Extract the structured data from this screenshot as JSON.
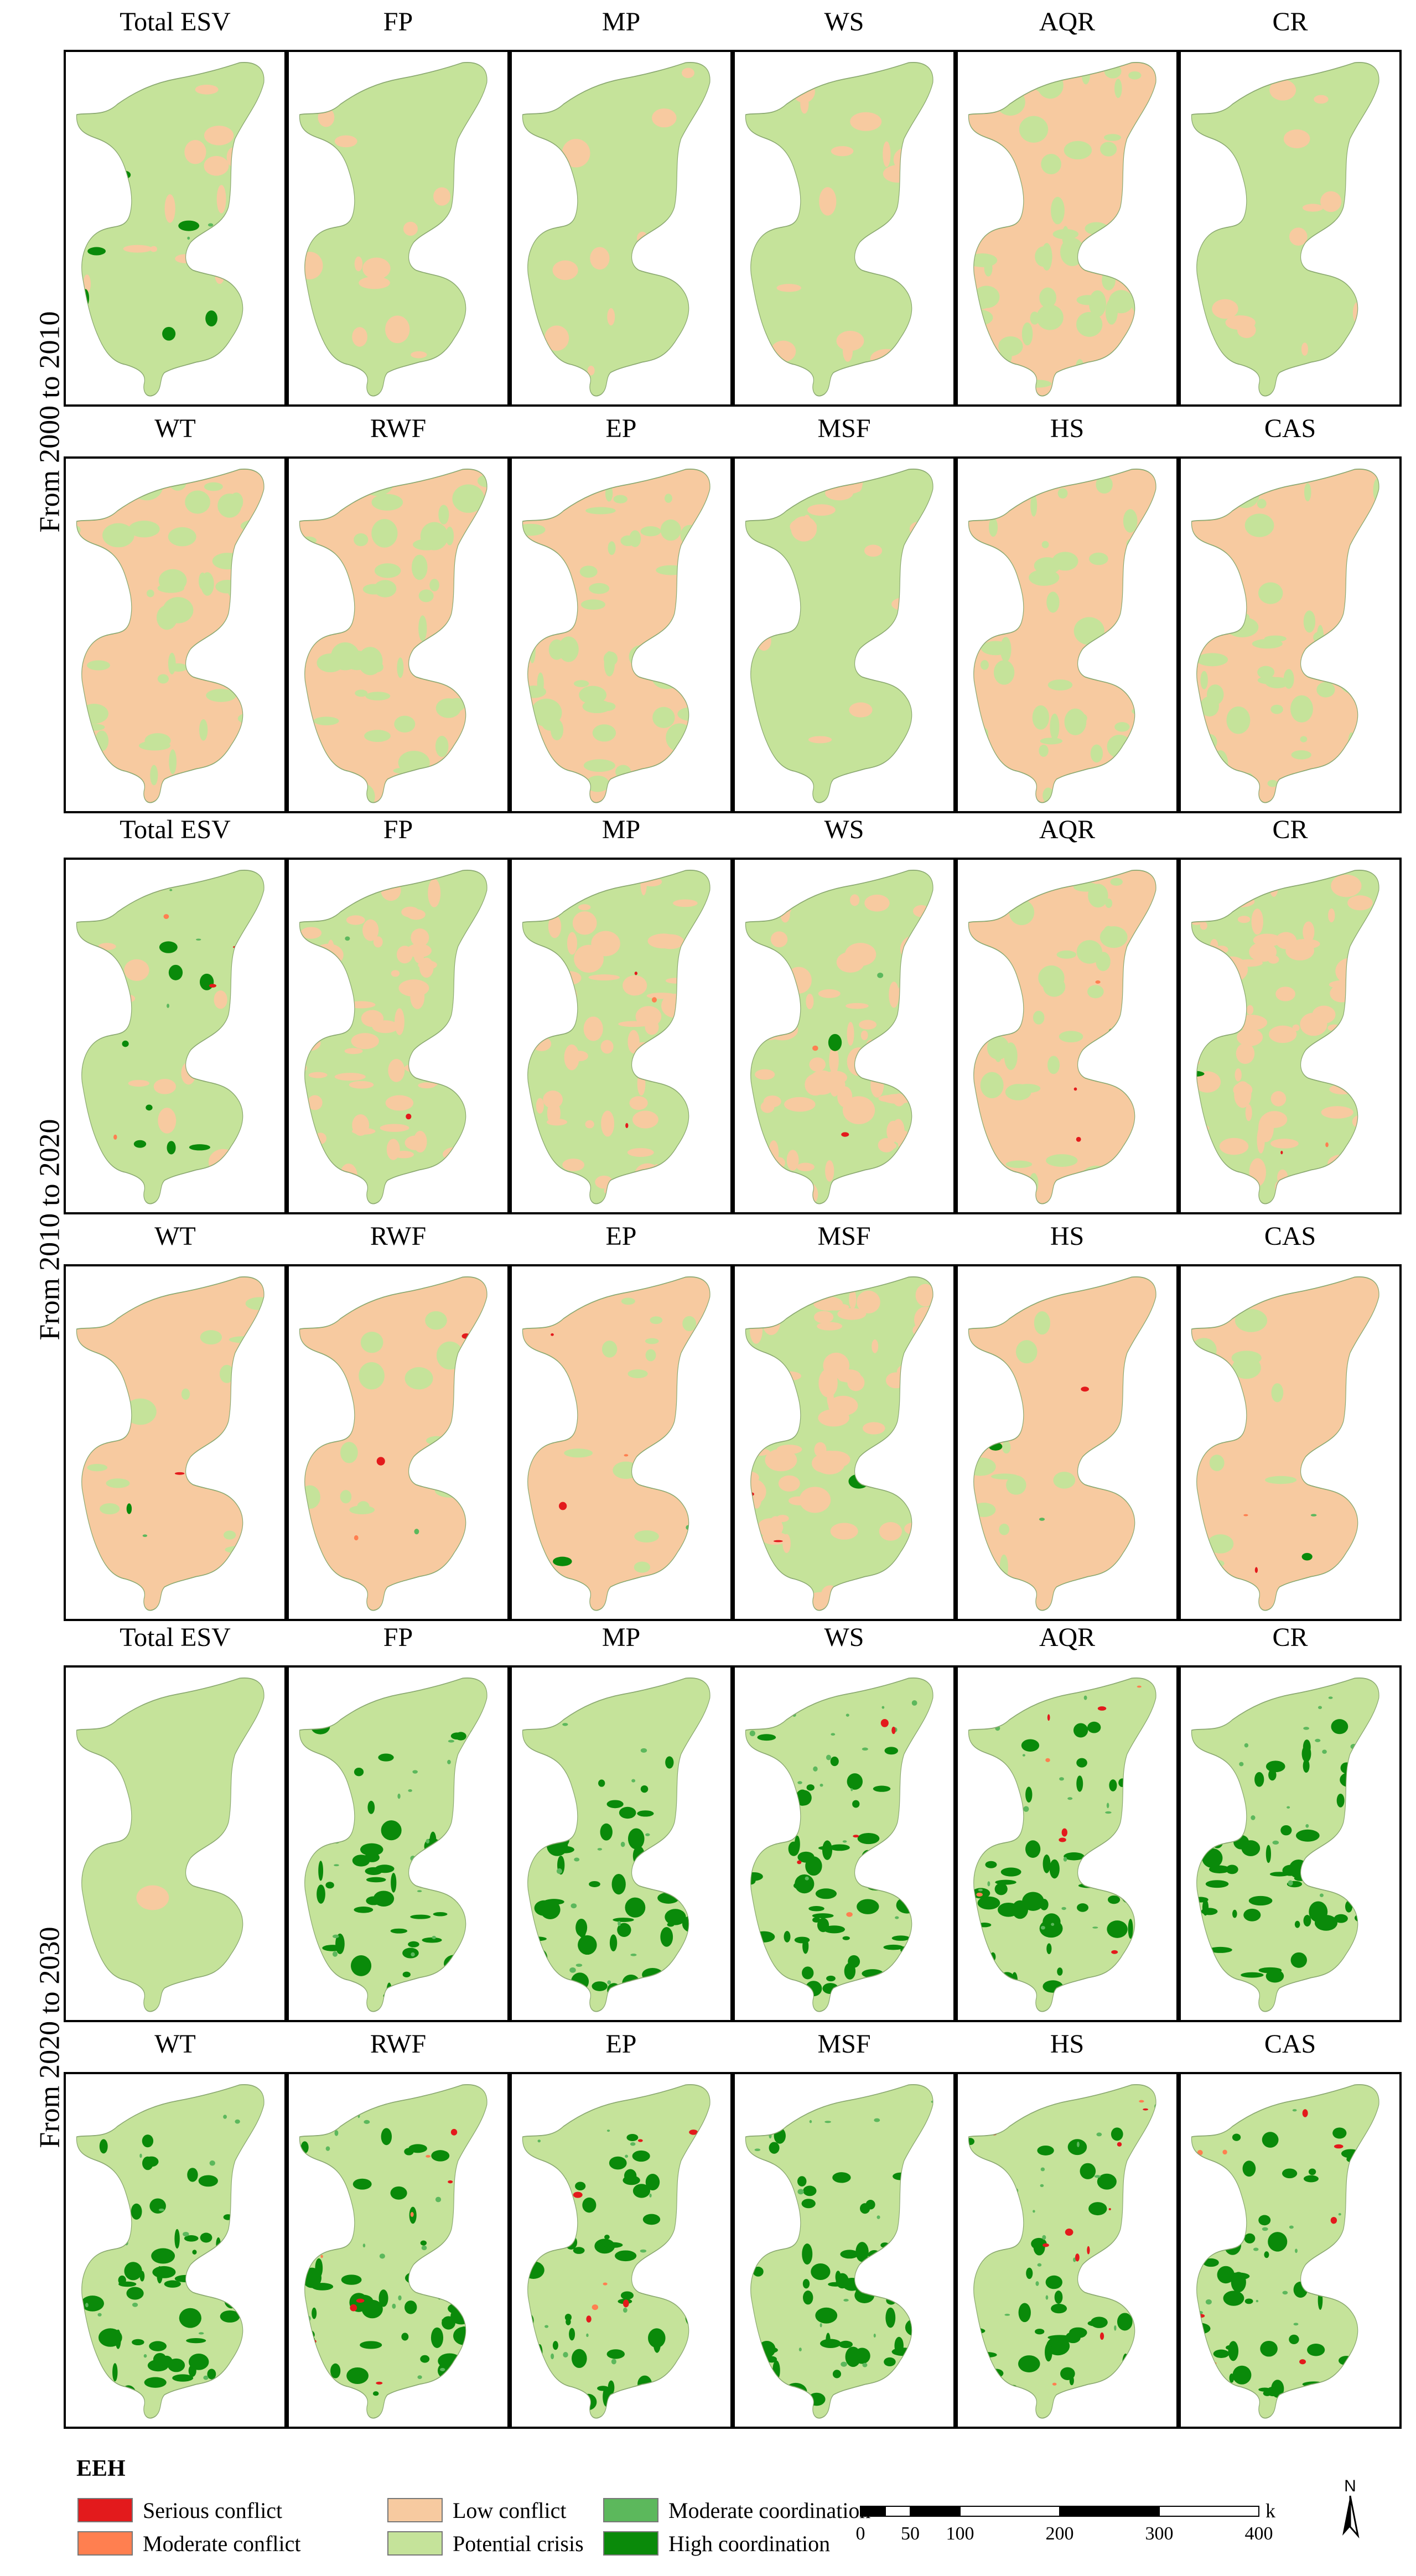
{
  "periods": [
    {
      "label": "From 2000 to 2010",
      "rows": [
        [
          {
            "title": "Total ESV",
            "base": "#c5e39a",
            "patch": "#f7caa0",
            "patchAmount": 0.12,
            "green": 0.05,
            "red": 0
          },
          {
            "title": "FP",
            "base": "#c5e39a",
            "patch": "#f7caa0",
            "patchAmount": 0.12,
            "green": 0,
            "red": 0
          },
          {
            "title": "MP",
            "base": "#c5e39a",
            "patch": "#f7caa0",
            "patchAmount": 0.12,
            "green": 0,
            "red": 0
          },
          {
            "title": "WS",
            "base": "#c5e39a",
            "patch": "#f7caa0",
            "patchAmount": 0.14,
            "green": 0,
            "red": 0
          },
          {
            "title": "AQR",
            "base": "#f7caa0",
            "patch": "#c5e39a",
            "patchAmount": 0.45,
            "green": 0,
            "red": 0
          },
          {
            "title": "CR",
            "base": "#c5e39a",
            "patch": "#f7caa0",
            "patchAmount": 0.12,
            "green": 0,
            "red": 0
          }
        ],
        [
          {
            "title": "WT",
            "base": "#f7caa0",
            "patch": "#c5e39a",
            "patchAmount": 0.38,
            "green": 0,
            "red": 0
          },
          {
            "title": "RWF",
            "base": "#f7caa0",
            "patch": "#c5e39a",
            "patchAmount": 0.38,
            "green": 0,
            "red": 0
          },
          {
            "title": "EP",
            "base": "#f7caa0",
            "patch": "#c5e39a",
            "patchAmount": 0.38,
            "green": 0,
            "red": 0
          },
          {
            "title": "MSF",
            "base": "#c5e39a",
            "patch": "#f7caa0",
            "patchAmount": 0.14,
            "green": 0,
            "red": 0
          },
          {
            "title": "HS",
            "base": "#f7caa0",
            "patch": "#c5e39a",
            "patchAmount": 0.38,
            "green": 0,
            "red": 0
          },
          {
            "title": "CAS",
            "base": "#f7caa0",
            "patch": "#c5e39a",
            "patchAmount": 0.38,
            "green": 0,
            "red": 0
          }
        ]
      ]
    },
    {
      "label": "From 2010 to 2020",
      "rows": [
        [
          {
            "title": "Total ESV",
            "base": "#c5e39a",
            "patch": "#f7caa0",
            "patchAmount": 0.1,
            "green": 0.12,
            "red": 0.04
          },
          {
            "title": "FP",
            "base": "#c5e39a",
            "patch": "#f7caa0",
            "patchAmount": 0.55,
            "green": 0.01,
            "red": 0.01
          },
          {
            "title": "MP",
            "base": "#c5e39a",
            "patch": "#f7caa0",
            "patchAmount": 0.55,
            "green": 0.01,
            "red": 0.01
          },
          {
            "title": "WS",
            "base": "#c5e39a",
            "patch": "#f7caa0",
            "patchAmount": 0.55,
            "green": 0.01,
            "red": 0.01
          },
          {
            "title": "AQR",
            "base": "#f7caa0",
            "patch": "#c5e39a",
            "patchAmount": 0.3,
            "green": 0.01,
            "red": 0.01
          },
          {
            "title": "CR",
            "base": "#c5e39a",
            "patch": "#f7caa0",
            "patchAmount": 0.55,
            "green": 0.01,
            "red": 0.01
          }
        ],
        [
          {
            "title": "WT",
            "base": "#f7caa0",
            "patch": "#c5e39a",
            "patchAmount": 0.15,
            "green": 0.01,
            "red": 0.01
          },
          {
            "title": "RWF",
            "base": "#f7caa0",
            "patch": "#c5e39a",
            "patchAmount": 0.15,
            "green": 0.01,
            "red": 0.01
          },
          {
            "title": "EP",
            "base": "#f7caa0",
            "patch": "#c5e39a",
            "patchAmount": 0.15,
            "green": 0.01,
            "red": 0.01
          },
          {
            "title": "MSF",
            "base": "#c5e39a",
            "patch": "#f7caa0",
            "patchAmount": 0.55,
            "green": 0.01,
            "red": 0.01
          },
          {
            "title": "HS",
            "base": "#f7caa0",
            "patch": "#c5e39a",
            "patchAmount": 0.15,
            "green": 0.01,
            "red": 0.01
          },
          {
            "title": "CAS",
            "base": "#f7caa0",
            "patch": "#c5e39a",
            "patchAmount": 0.15,
            "green": 0.01,
            "red": 0.01
          }
        ]
      ]
    },
    {
      "label": "From 2020 to 2030",
      "rows": [
        [
          {
            "title": "Total ESV",
            "base": "#c5e39a",
            "patch": "#f7caa0",
            "patchAmount": 0.01,
            "green": 0,
            "red": 0
          },
          {
            "title": "FP",
            "base": "#c5e39a",
            "patch": "#f7caa0",
            "patchAmount": 0,
            "green": 0.35,
            "red": 0
          },
          {
            "title": "MP",
            "base": "#c5e39a",
            "patch": "#f7caa0",
            "patchAmount": 0,
            "green": 0.38,
            "red": 0
          },
          {
            "title": "WS",
            "base": "#c5e39a",
            "patch": "#f7caa0",
            "patchAmount": 0,
            "green": 0.38,
            "red": 0.03
          },
          {
            "title": "AQR",
            "base": "#c5e39a",
            "patch": "#f7caa0",
            "patchAmount": 0,
            "green": 0.35,
            "red": 0.06
          },
          {
            "title": "CR",
            "base": "#c5e39a",
            "patch": "#f7caa0",
            "patchAmount": 0,
            "green": 0.38,
            "red": 0
          }
        ],
        [
          {
            "title": "WT",
            "base": "#c5e39a",
            "patch": "#f7caa0",
            "patchAmount": 0,
            "green": 0.38,
            "red": 0
          },
          {
            "title": "RWF",
            "base": "#c5e39a",
            "patch": "#f7caa0",
            "patchAmount": 0,
            "green": 0.35,
            "red": 0.07
          },
          {
            "title": "EP",
            "base": "#c5e39a",
            "patch": "#f7caa0",
            "patchAmount": 0,
            "green": 0.35,
            "red": 0.07
          },
          {
            "title": "MSF",
            "base": "#c5e39a",
            "patch": "#f7caa0",
            "patchAmount": 0,
            "green": 0.38,
            "red": 0
          },
          {
            "title": "HS",
            "base": "#c5e39a",
            "patch": "#f7caa0",
            "patchAmount": 0,
            "green": 0.35,
            "red": 0.07
          },
          {
            "title": "CAS",
            "base": "#c5e39a",
            "patch": "#f7caa0",
            "patchAmount": 0,
            "green": 0.35,
            "red": 0.07
          }
        ]
      ]
    }
  ],
  "legend": {
    "title": "EEH",
    "items": [
      {
        "label": "Serious conflict",
        "color": "#e31a1c"
      },
      {
        "label": "Moderate conflict",
        "color": "#ff7f50"
      },
      {
        "label": "Low conflict",
        "color": "#f7caa0"
      },
      {
        "label": "Potential crisis",
        "color": "#c5e39a"
      },
      {
        "label": "Moderate coordination",
        "color": "#5cb85c"
      },
      {
        "label": "High coordination",
        "color": "#0a8a0a"
      }
    ]
  },
  "scale": {
    "ticks": [
      "0",
      "50",
      "100",
      "200",
      "300",
      "400"
    ],
    "unit": "km"
  },
  "north": {
    "label": "N"
  }
}
